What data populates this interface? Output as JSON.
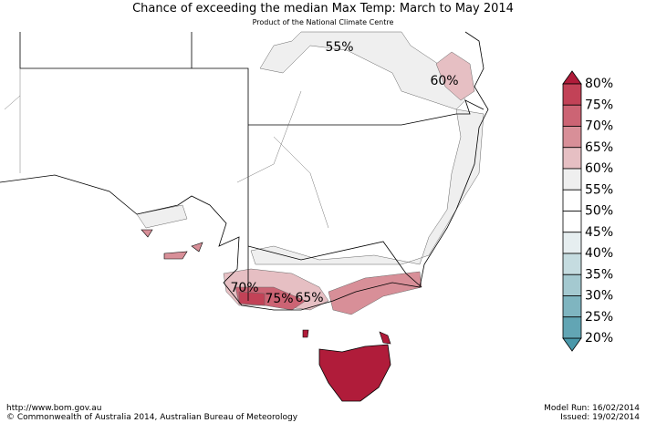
{
  "header": {
    "title": "Chance of exceeding the median Max Temp: March to May 2014",
    "subtitle": "Product of the National Climate Centre"
  },
  "map_labels": [
    "55%",
    "60%",
    "70%",
    "75%",
    "65%"
  ],
  "legend": {
    "labels": [
      "80%",
      "75%",
      "70%",
      "65%",
      "60%",
      "55%",
      "50%",
      "45%",
      "40%",
      "35%",
      "30%",
      "25%",
      "20%"
    ],
    "colors": [
      "#c24257",
      "#cc6474",
      "#d88f98",
      "#e6bfc3",
      "#efefef",
      "#ffffff",
      "#ffffff",
      "#e6eef0",
      "#c5dce0",
      "#a4c9d0",
      "#7fb5c0",
      "#62a5b4"
    ],
    "top_color": "#b01c3a",
    "bottom_color": "#4a98aa"
  },
  "footer": {
    "url": "http://www.bom.gov.au",
    "copyright": "©  Commonwealth of Australia 2014, Australian Bureau of Meteorology",
    "model_run": "Model Run: 16/02/2014",
    "issued": "Issued: 19/02/2014"
  }
}
